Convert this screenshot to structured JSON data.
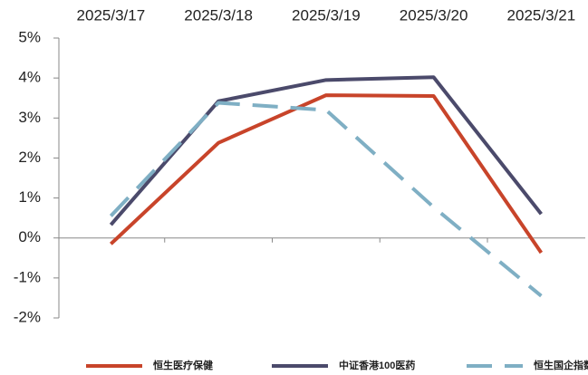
{
  "chart_data": {
    "type": "line",
    "categories": [
      "2025/3/17",
      "2025/3/18",
      "2025/3/19",
      "2025/3/20",
      "2025/3/21"
    ],
    "series": [
      {
        "name": "恒生医疗保健",
        "color": "#c8442a",
        "line_style": "solid",
        "values": [
          -0.15,
          2.38,
          3.57,
          3.55,
          -0.37
        ]
      },
      {
        "name": "中证香港100医药",
        "color": "#4b4a6b",
        "line_style": "solid",
        "values": [
          0.33,
          3.42,
          3.95,
          4.02,
          0.6
        ]
      },
      {
        "name": "恒生国企指数",
        "color": "#7fafc4",
        "line_style": "dashed",
        "values": [
          0.55,
          3.38,
          3.2,
          0.77,
          -1.45
        ]
      }
    ],
    "ylim": [
      -2,
      5
    ],
    "yticks": [
      {
        "value": -2,
        "label": "-2%"
      },
      {
        "value": -1,
        "label": "-1%"
      },
      {
        "value": 0,
        "label": "0%"
      },
      {
        "value": 1,
        "label": "1%"
      },
      {
        "value": 2,
        "label": "2%"
      },
      {
        "value": 3,
        "label": "3%"
      },
      {
        "value": 4,
        "label": "4%"
      },
      {
        "value": 5,
        "label": "5%"
      }
    ],
    "legend": "bottom",
    "grid": false
  }
}
